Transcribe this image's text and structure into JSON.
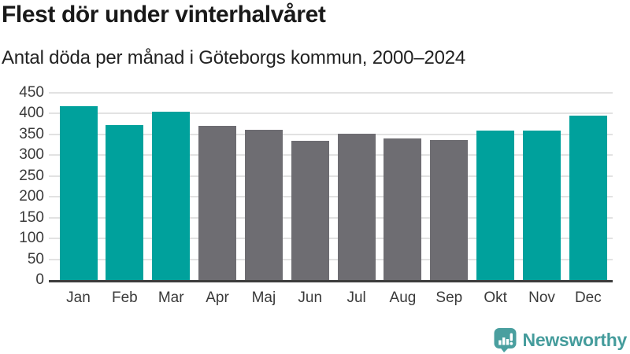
{
  "header": {
    "title": "Flest dör under vinterhalvåret",
    "subtitle": "Antal döda per månad i Göteborgs kommun, 2000–2024"
  },
  "chart_data": {
    "type": "bar",
    "title": "Flest dör under vinterhalvåret",
    "subtitle": "Antal döda per månad i Göteborgs kommun, 2000–2024",
    "categories": [
      "Jan",
      "Feb",
      "Mar",
      "Apr",
      "Maj",
      "Jun",
      "Jul",
      "Aug",
      "Sep",
      "Okt",
      "Nov",
      "Dec"
    ],
    "values": [
      417,
      373,
      404,
      370,
      362,
      334,
      351,
      340,
      337,
      360,
      360,
      396
    ],
    "highlighted": [
      true,
      true,
      true,
      false,
      false,
      false,
      false,
      false,
      false,
      true,
      true,
      true
    ],
    "xlabel": "",
    "ylabel": "",
    "ylim": [
      0,
      450
    ],
    "ytick_step": 50,
    "yticks": [
      0,
      50,
      100,
      150,
      200,
      250,
      300,
      350,
      400,
      450
    ],
    "grid": true,
    "legend": "none",
    "colors": {
      "highlight": "#00a19c",
      "default": "#6e6d72",
      "gridline": "#e2e2e2",
      "axis": "#3c3c3c",
      "tick_text": "#3a3a3a"
    }
  },
  "footer": {
    "brand": "Newsworthy",
    "logo_icon": "bar-chart-speech-bubble-icon",
    "brand_color": "#459c9c"
  }
}
